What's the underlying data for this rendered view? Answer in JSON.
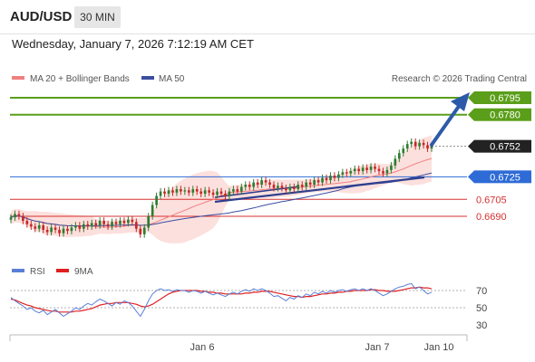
{
  "header": {
    "pair": "AUD/USD",
    "timeframe": "30 MIN"
  },
  "datetime": "Wednesday, January 7, 2026 7:12:19 AM CET",
  "credit": "Research © 2026 Trading Central",
  "colors": {
    "resistance": "#5a9e1a",
    "support": "#2e6bd6",
    "minor_support": "#d63030",
    "current": "#222222",
    "bull_candle": "#2e7d32",
    "bear_candle": "#c62828",
    "ma20": "#f08080",
    "ma50": "#3b4ea0",
    "band_fill": "#fbd5d2",
    "rsi": "#5b7fd6",
    "rsi_ma": "#e02020"
  },
  "chart_data": [
    {
      "type": "candlestick",
      "legend": [
        {
          "name": "MA 20 + Bollinger Bands",
          "color": "#f08080"
        },
        {
          "name": "MA 50",
          "color": "#3b4ea0"
        }
      ],
      "levels": [
        {
          "value": 0.6795,
          "label": "0.6795",
          "kind": "resistance",
          "color": "#5a9e1a"
        },
        {
          "value": 0.678,
          "label": "0.6780",
          "kind": "resistance",
          "color": "#5a9e1a"
        },
        {
          "value": 0.6752,
          "label": "0.6752",
          "kind": "current",
          "color": "#222222"
        },
        {
          "value": 0.6725,
          "label": "0.6725",
          "kind": "support",
          "color": "#2e6bd6"
        },
        {
          "value": 0.6705,
          "label": "0.6705",
          "kind": "minor",
          "color": "#d63030"
        },
        {
          "value": 0.669,
          "label": "0.6690",
          "kind": "minor",
          "color": "#d63030"
        }
      ],
      "x_labels": [
        "Jan 6",
        "Jan 7",
        "Jan 10"
      ],
      "ylim": [
        0.6665,
        0.68
      ],
      "close": [
        0.6689,
        0.6692,
        0.669,
        0.6686,
        0.6683,
        0.6681,
        0.6679,
        0.6682,
        0.6678,
        0.6676,
        0.668,
        0.6678,
        0.6675,
        0.6679,
        0.6677,
        0.668,
        0.6682,
        0.6679,
        0.6683,
        0.6681,
        0.6684,
        0.6682,
        0.6686,
        0.6683,
        0.6681,
        0.6685,
        0.6683,
        0.6686,
        0.6684,
        0.6687,
        0.6685,
        0.6679,
        0.6674,
        0.668,
        0.669,
        0.67,
        0.6708,
        0.6712,
        0.671,
        0.6713,
        0.6711,
        0.6714,
        0.6712,
        0.6713,
        0.6711,
        0.6714,
        0.6712,
        0.671,
        0.6713,
        0.6711,
        0.6709,
        0.6712,
        0.671,
        0.6708,
        0.6712,
        0.6714,
        0.6712,
        0.6716,
        0.6718,
        0.6716,
        0.672,
        0.6718,
        0.6722,
        0.672,
        0.6718,
        0.6715,
        0.6717,
        0.6715,
        0.6713,
        0.6716,
        0.6714,
        0.6718,
        0.6716,
        0.672,
        0.6718,
        0.6722,
        0.672,
        0.6724,
        0.6722,
        0.6726,
        0.6724,
        0.6727,
        0.6729,
        0.6728,
        0.673,
        0.6732,
        0.673,
        0.6733,
        0.6731,
        0.6734,
        0.6732,
        0.673,
        0.6728,
        0.6731,
        0.6735,
        0.6741,
        0.6746,
        0.675,
        0.6754,
        0.6756,
        0.6752,
        0.6755,
        0.6753,
        0.675,
        0.6752
      ]
    },
    {
      "type": "line",
      "legend": [
        {
          "name": "RSI",
          "color": "#5b7fd6"
        },
        {
          "name": "9MA",
          "color": "#e02020"
        }
      ],
      "ylim": [
        25,
        80
      ],
      "y_ticks": [
        70,
        50,
        30
      ],
      "rsi": [
        62,
        58,
        55,
        52,
        48,
        50,
        46,
        44,
        47,
        42,
        45,
        48,
        44,
        40,
        43,
        46,
        50,
        48,
        52,
        55,
        53,
        57,
        60,
        58,
        55,
        52,
        56,
        54,
        58,
        56,
        52,
        46,
        40,
        48,
        58,
        66,
        70,
        72,
        70,
        71,
        69,
        71,
        70,
        70,
        68,
        70,
        69,
        67,
        69,
        67,
        65,
        67,
        65,
        63,
        66,
        68,
        66,
        69,
        71,
        69,
        72,
        70,
        72,
        70,
        67,
        63,
        64,
        61,
        58,
        62,
        60,
        64,
        62,
        66,
        64,
        68,
        66,
        69,
        67,
        70,
        68,
        70,
        71,
        69,
        71,
        72,
        70,
        72,
        70,
        72,
        70,
        67,
        64,
        66,
        69,
        72,
        74,
        75,
        77,
        78,
        72,
        74,
        70,
        66,
        68
      ],
      "ma9": [
        60,
        59,
        57,
        55,
        53,
        52,
        50,
        49,
        48,
        47,
        46,
        46,
        45,
        45,
        45,
        45,
        46,
        46,
        47,
        48,
        49,
        51,
        53,
        54,
        55,
        55,
        56,
        56,
        56,
        56,
        55,
        54,
        52,
        51,
        52,
        54,
        57,
        60,
        63,
        66,
        68,
        69,
        70,
        70,
        70,
        70,
        70,
        69,
        69,
        68,
        68,
        67,
        67,
        66,
        66,
        66,
        66,
        66,
        67,
        67,
        68,
        68,
        69,
        69,
        69,
        68,
        67,
        66,
        65,
        64,
        63,
        63,
        62,
        63,
        63,
        64,
        65,
        66,
        66,
        67,
        67,
        68,
        68,
        69,
        69,
        70,
        70,
        70,
        70,
        71,
        71,
        70,
        70,
        69,
        69,
        69,
        70,
        71,
        72,
        73,
        73,
        74,
        73,
        73,
        72
      ]
    }
  ]
}
